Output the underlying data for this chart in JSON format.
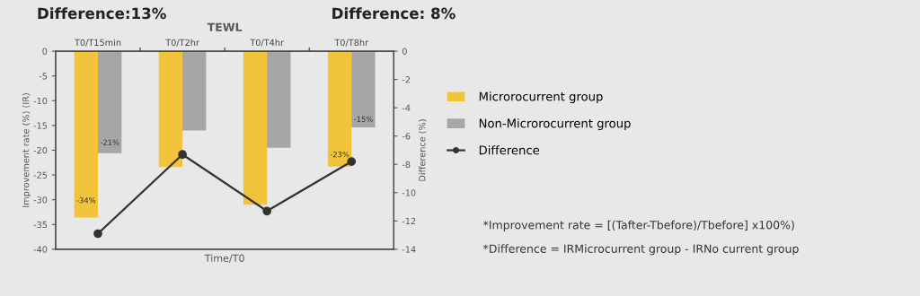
{
  "chart_data": {
    "type": "bar",
    "title": "TEWL",
    "xlabel": "Time/T0",
    "ylabel": "Improvement rate (%) (IR)",
    "y2label": "Difference (%)",
    "categories": [
      "T0/T15min",
      "T0/T2hr",
      "T0/T4hr",
      "T0/T8hr"
    ],
    "series": [
      {
        "name": "Microrocurrent group",
        "color": "#f2c43c",
        "values": [
          -33.6,
          -23.4,
          -31.0,
          -23.3
        ],
        "value_labels": [
          "-34%",
          null,
          null,
          "-23%"
        ]
      },
      {
        "name": "Non-Microrocurrent group",
        "color": "#a6a6a6",
        "values": [
          -20.6,
          -16.0,
          -19.5,
          -15.4
        ],
        "value_labels": [
          "-21%",
          null,
          null,
          "-15%"
        ]
      },
      {
        "name": "Difference",
        "type": "line",
        "axis": "y2",
        "color": "#333333",
        "marker": "circle",
        "values": [
          -12.9,
          -7.3,
          -11.3,
          -7.8
        ]
      }
    ],
    "ylim": [
      -40,
      0
    ],
    "yticks": [
      0,
      -5,
      -10,
      -15,
      -20,
      -25,
      -30,
      -35,
      -40
    ],
    "y2lim": [
      -14,
      0
    ],
    "y2ticks": [
      0,
      -2,
      -4,
      -6,
      -8,
      -10,
      -12,
      -14
    ],
    "grid": false,
    "legend": "right",
    "annotations": [
      "Difference:13%",
      "Difference: 8%",
      "*Improvement rate = [(Tafter-Tbefore)/Tbefore] x100%)",
      "*Difference = IRMicrocurrent group - IRNo current group"
    ]
  }
}
